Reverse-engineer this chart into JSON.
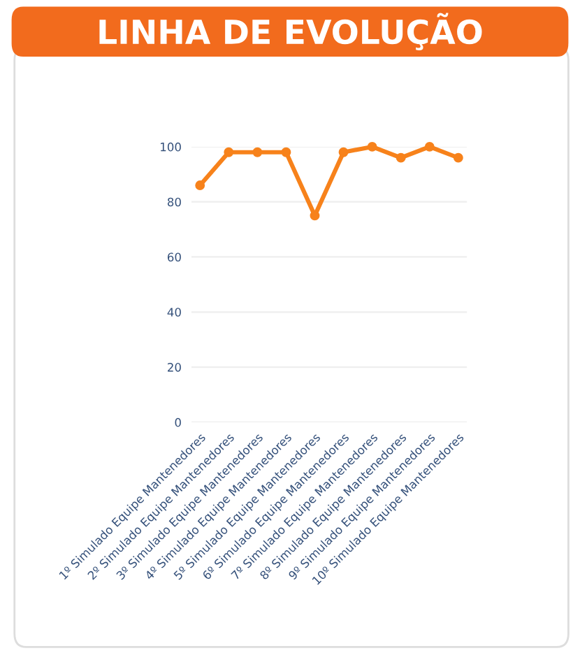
{
  "chart_data": {
    "type": "line",
    "title": "LINHA DE EVOLUÇÃO",
    "categories": [
      "1º Simulado Equipe Mantenedores",
      "2º Simulado Equipe Mantenedores",
      "3º Simulado Equipe Mantenedores",
      "4º Simulado Equipe Mantenedores",
      "5º Simulado Equipe Mantenedores",
      "6º Simulado Equipe Mantenedores",
      "7º Simulado Equipe Mantenedores",
      "8º Simulado Equipe Mantenedores",
      "9º Simulado Equipe Mantenedores",
      "10º Simulado Equipe Mantenedores"
    ],
    "series": [
      {
        "color": "#f7821b",
        "values": [
          86,
          98,
          98,
          98,
          75,
          98,
          100,
          96,
          100,
          96
        ]
      }
    ],
    "ylim": [
      0,
      100
    ],
    "yticks": [
      0,
      20,
      40,
      60,
      80,
      100
    ],
    "grid": "y",
    "marker": "circle",
    "line_style": "solid",
    "legend": false
  }
}
